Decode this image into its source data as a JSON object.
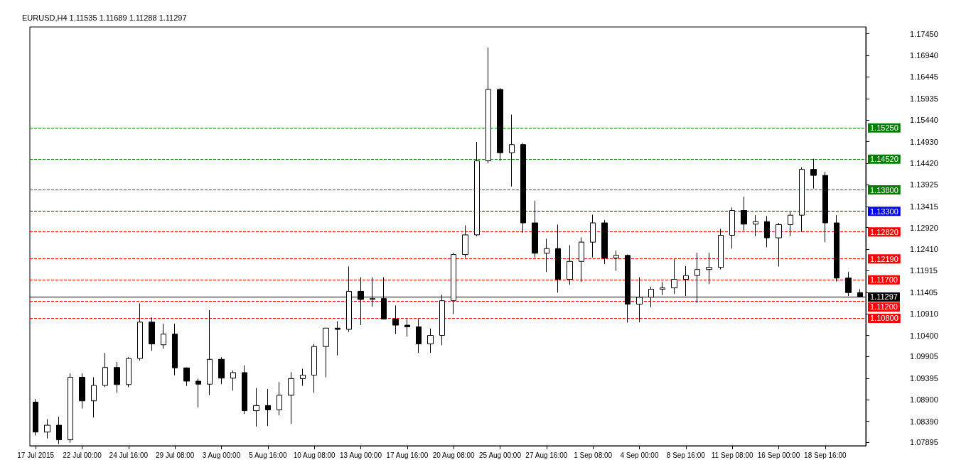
{
  "chart_data": {
    "type": "candlestick",
    "title": "EURUSD,H4 1.11535 1.11689 1.11288 1.11297",
    "categories": [
      "17 Jul 2015",
      null,
      null,
      null,
      "22 Jul 00:00",
      null,
      null,
      null,
      "24 Jul 16:00",
      null,
      null,
      null,
      "29 Jul 08:00",
      null,
      null,
      null,
      "3 Aug 00:00",
      null,
      null,
      null,
      "5 Aug 16:00",
      null,
      null,
      null,
      "10 Aug 08:00",
      null,
      null,
      null,
      "13 Aug 00:00",
      null,
      null,
      null,
      "17 Aug 16:00",
      null,
      null,
      null,
      "20 Aug 08:00",
      null,
      null,
      null,
      "25 Aug 00:00",
      null,
      null,
      null,
      "27 Aug 16:00",
      null,
      null,
      null,
      "1 Sep 08:00",
      null,
      null,
      null,
      "4 Sep 00:00",
      null,
      null,
      null,
      "8 Sep 16:00",
      null,
      null,
      null,
      "11 Sep 08:00",
      null,
      null,
      null,
      "16 Sep 00:00",
      null,
      null,
      null,
      "18 Sep 16:00",
      null,
      null,
      null
    ],
    "ohlc": [
      [
        1.0884,
        1.0891,
        1.0806,
        1.0814
      ],
      [
        1.0814,
        1.0844,
        1.0799,
        1.083
      ],
      [
        1.083,
        1.085,
        1.0786,
        1.0796
      ],
      [
        1.0796,
        1.0951,
        1.0789,
        1.0942
      ],
      [
        1.0942,
        1.0951,
        1.0869,
        1.0887
      ],
      [
        1.0887,
        1.0942,
        1.0848,
        1.0923
      ],
      [
        1.0923,
        1.0999,
        1.0919,
        1.0965
      ],
      [
        1.0965,
        1.0978,
        1.0906,
        1.0925
      ],
      [
        1.0925,
        1.0989,
        1.0919,
        1.0986
      ],
      [
        1.0986,
        1.1115,
        1.0981,
        1.1071
      ],
      [
        1.1071,
        1.1082,
        1.1004,
        1.102
      ],
      [
        1.1018,
        1.1067,
        1.1009,
        1.1043
      ],
      [
        1.1043,
        1.1067,
        1.0947,
        1.0964
      ],
      [
        1.0964,
        1.0965,
        1.0922,
        1.0933
      ],
      [
        1.0933,
        1.0939,
        1.0872,
        1.0926
      ],
      [
        1.0926,
        1.1099,
        1.09,
        1.0984
      ],
      [
        1.0984,
        1.0989,
        1.0926,
        1.094
      ],
      [
        1.094,
        1.0958,
        1.0911,
        1.0953
      ],
      [
        1.0953,
        1.097,
        1.0856,
        1.0864
      ],
      [
        1.0864,
        1.0917,
        1.0827,
        1.0876
      ],
      [
        1.0876,
        1.0915,
        1.0828,
        1.0866
      ],
      [
        1.0866,
        1.0931,
        1.0853,
        1.09
      ],
      [
        1.09,
        1.0954,
        1.0833,
        1.0939
      ],
      [
        1.0939,
        1.0962,
        1.0922,
        1.0947
      ],
      [
        1.0947,
        1.102,
        1.0906,
        1.1014
      ],
      [
        1.1014,
        1.1057,
        1.0942,
        1.1057
      ],
      [
        1.1057,
        1.1073,
        1.0993,
        1.1054
      ],
      [
        1.1054,
        1.1201,
        1.1048,
        1.1143
      ],
      [
        1.1143,
        1.1176,
        1.1064,
        1.1124
      ],
      [
        1.1124,
        1.1176,
        1.1107,
        1.1126
      ],
      [
        1.1126,
        1.1176,
        1.1078,
        1.1078
      ],
      [
        1.1078,
        1.111,
        1.1043,
        1.1064
      ],
      [
        1.1064,
        1.1078,
        1.1037,
        1.106
      ],
      [
        1.106,
        1.1078,
        1.0999,
        1.102
      ],
      [
        1.102,
        1.1056,
        1.0999,
        1.104
      ],
      [
        1.104,
        1.1135,
        1.1017,
        1.1121
      ],
      [
        1.1121,
        1.1233,
        1.109,
        1.1229
      ],
      [
        1.1229,
        1.1297,
        1.1222,
        1.1275
      ],
      [
        1.1275,
        1.1492,
        1.1272,
        1.1448
      ],
      [
        1.1448,
        1.1713,
        1.1442,
        1.1615
      ],
      [
        1.1615,
        1.1618,
        1.1448,
        1.1467
      ],
      [
        1.1467,
        1.1556,
        1.1388,
        1.1486
      ],
      [
        1.1486,
        1.149,
        1.128,
        1.1303
      ],
      [
        1.1303,
        1.1355,
        1.1222,
        1.1232
      ],
      [
        1.1232,
        1.1266,
        1.1188,
        1.1243
      ],
      [
        1.1243,
        1.1299,
        1.114,
        1.1171
      ],
      [
        1.1171,
        1.1251,
        1.1158,
        1.1213
      ],
      [
        1.1213,
        1.1269,
        1.1165,
        1.1258
      ],
      [
        1.1258,
        1.1322,
        1.1222,
        1.1303
      ],
      [
        1.1303,
        1.131,
        1.1207,
        1.1221
      ],
      [
        1.1221,
        1.1238,
        1.1191,
        1.1227
      ],
      [
        1.1227,
        1.1229,
        1.107,
        1.1113
      ],
      [
        1.1113,
        1.1176,
        1.1071,
        1.1129
      ],
      [
        1.1129,
        1.1154,
        1.1106,
        1.1148
      ],
      [
        1.1148,
        1.1165,
        1.1134,
        1.1151
      ],
      [
        1.1151,
        1.1218,
        1.1137,
        1.1171
      ],
      [
        1.1171,
        1.1202,
        1.1132,
        1.118
      ],
      [
        1.118,
        1.1233,
        1.1116,
        1.1194
      ],
      [
        1.1194,
        1.1233,
        1.116,
        1.1199
      ],
      [
        1.1199,
        1.1289,
        1.1194,
        1.1274
      ],
      [
        1.1274,
        1.1339,
        1.1243,
        1.1332
      ],
      [
        1.1332,
        1.1364,
        1.1285,
        1.13
      ],
      [
        1.13,
        1.1321,
        1.1272,
        1.1306
      ],
      [
        1.1306,
        1.1319,
        1.1246,
        1.1268
      ],
      [
        1.1268,
        1.1303,
        1.1201,
        1.1299
      ],
      [
        1.1299,
        1.1328,
        1.1272,
        1.1321
      ],
      [
        1.1321,
        1.1433,
        1.1282,
        1.1428
      ],
      [
        1.1428,
        1.1453,
        1.1383,
        1.1414
      ],
      [
        1.1414,
        1.1422,
        1.1258,
        1.1303
      ],
      [
        1.1303,
        1.1321,
        1.1166,
        1.1174
      ],
      [
        1.1174,
        1.1188,
        1.1132,
        1.114
      ],
      [
        1.114,
        1.1148,
        1.11288,
        1.11297
      ]
    ],
    "ylim": [
      1.0782,
      1.1761
    ],
    "yticks": [
      {
        "value": 1.1745,
        "label": "1.17450"
      },
      {
        "value": 1.1694,
        "label": "1.16940"
      },
      {
        "value": 1.16445,
        "label": "1.16445"
      },
      {
        "value": 1.15935,
        "label": "1.15935"
      },
      {
        "value": 1.1544,
        "label": "1.15440"
      },
      {
        "value": 1.1493,
        "label": "1.14930"
      },
      {
        "value": 1.1442,
        "label": "1.14420"
      },
      {
        "value": 1.13925,
        "label": "1.13925"
      },
      {
        "value": 1.13415,
        "label": "1.13415"
      },
      {
        "value": 1.1292,
        "label": "1.12920"
      },
      {
        "value": 1.1241,
        "label": "1.12410"
      },
      {
        "value": 1.11915,
        "label": "1.11915"
      },
      {
        "value": 1.11405,
        "label": "1.11405"
      },
      {
        "value": 1.1091,
        "label": "1.10910"
      },
      {
        "value": 1.104,
        "label": "1.10400"
      },
      {
        "value": 1.09905,
        "label": "1.09905"
      },
      {
        "value": 1.09395,
        "label": "1.09395"
      },
      {
        "value": 1.089,
        "label": "1.08900"
      },
      {
        "value": 1.0839,
        "label": "1.08390"
      },
      {
        "value": 1.07895,
        "label": "1.07895"
      }
    ],
    "ref_lines": [
      {
        "axis": "y",
        "value": 1.1525,
        "label": "1.15250",
        "color": "#008000",
        "line_style": "dashed"
      },
      {
        "axis": "y",
        "value": 1.1452,
        "label": "1.14520",
        "color": "#008000",
        "line_style": "dashed"
      },
      {
        "axis": "y",
        "value": 1.138,
        "label": "1.13800",
        "color": "#008000",
        "line_style": "dashed"
      },
      {
        "axis": "y",
        "value": 1.133,
        "label": "1.13300",
        "color": "#0000ff",
        "line_style": "dashed"
      },
      {
        "axis": "y",
        "value": 1.1282,
        "label": "1.12820",
        "color": "#ff0000",
        "line_style": "dashed"
      },
      {
        "axis": "y",
        "value": 1.1219,
        "label": "1.12190",
        "color": "#ff0000",
        "line_style": "dashed"
      },
      {
        "axis": "y",
        "value": 1.117,
        "label": "1.11700",
        "color": "#ff0000",
        "line_style": "dashed"
      },
      {
        "axis": "y",
        "value": 1.11297,
        "label": "1.11297",
        "color": "#000000",
        "line_style": "solid"
      },
      {
        "axis": "y",
        "value": 1.112,
        "label": "1.11200",
        "color": "#ff0000",
        "line_style": "dashed"
      },
      {
        "axis": "y",
        "value": 1.108,
        "label": "1.10800",
        "color": "#ff0000",
        "line_style": "dashed"
      }
    ]
  }
}
